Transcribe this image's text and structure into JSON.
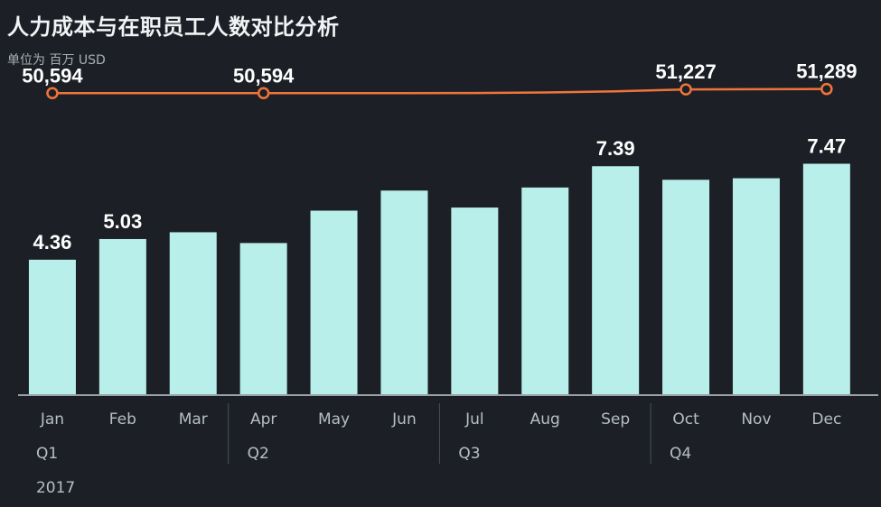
{
  "header": {
    "title": "人力成本与在职员工人数对比分析",
    "subtitle": "单位为 百万 USD"
  },
  "colors": {
    "background": "#1c2026",
    "bar": "#b8efeb",
    "line": "#f0743a",
    "axis": "#9aa1a9",
    "text": "#b7bec6"
  },
  "chart_data": {
    "type": "bar",
    "title": "人力成本与在职员工人数对比分析",
    "subtitle": "单位为 百万 USD",
    "categories": [
      "Jan",
      "Feb",
      "Mar",
      "Apr",
      "May",
      "Jun",
      "Jul",
      "Aug",
      "Sep",
      "Oct",
      "Nov",
      "Dec"
    ],
    "quarters": [
      "Q1",
      "Q2",
      "Q3",
      "Q4"
    ],
    "year": "2017",
    "series": [
      {
        "type": "bar",
        "values": [
          4.36,
          5.03,
          5.25,
          4.9,
          5.95,
          6.6,
          6.05,
          6.7,
          7.39,
          6.95,
          7.0,
          7.47
        ],
        "labels": [
          "4.36",
          "5.03",
          "",
          "",
          "",
          "",
          "",
          "",
          "7.39",
          "",
          "",
          "7.47"
        ]
      },
      {
        "type": "line",
        "values": [
          50594,
          50594,
          50594,
          50594,
          50594,
          50600,
          50610,
          50700,
          50900,
          51227,
          51260,
          51289
        ],
        "labels": [
          "50,594",
          "",
          "",
          "50,594",
          "",
          "",
          "",
          "",
          "",
          "51,227",
          "",
          "51,289"
        ],
        "markers": [
          true,
          false,
          false,
          true,
          false,
          false,
          false,
          false,
          false,
          true,
          false,
          true
        ]
      }
    ],
    "ylim": [
      0,
      11.9
    ],
    "y2lim": [
      0,
      61700
    ],
    "grid": false,
    "legend": "none"
  }
}
